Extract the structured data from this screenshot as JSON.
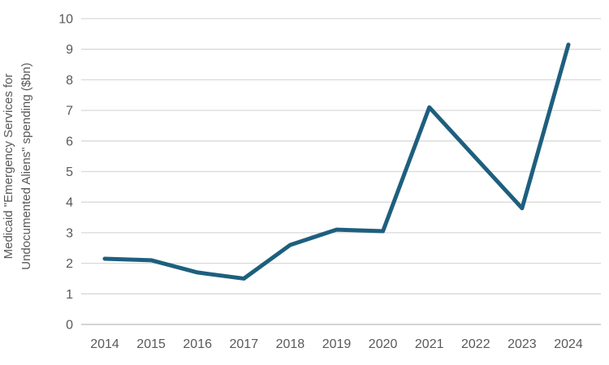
{
  "chart_data": {
    "type": "line",
    "x": [
      "2014",
      "2015",
      "2016",
      "2017",
      "2018",
      "2019",
      "2020",
      "2021",
      "2022",
      "2023",
      "2024"
    ],
    "values": [
      2.15,
      2.1,
      1.7,
      1.5,
      2.6,
      3.1,
      3.05,
      7.1,
      5.45,
      3.8,
      9.15
    ],
    "title": "",
    "xlabel": "",
    "ylabel": "Medicaid \"Emergency Services for Undocumented Aliens\" spending ($bn)",
    "ylabel_lines": {
      "line1": "Medicaid \"Emergency Services for",
      "line2": "Undocumented Aliens\" spending ($bn)"
    },
    "ylim": [
      0,
      10
    ],
    "yticks": [
      0,
      1,
      2,
      3,
      4,
      5,
      6,
      7,
      8,
      9,
      10
    ],
    "grid": "horizontal",
    "legend": "none",
    "colors": {
      "line": "#1e5f7e",
      "grid": "#d9d9d9",
      "zero_line": "#c6c6c6",
      "tick_text": "#595959"
    }
  }
}
